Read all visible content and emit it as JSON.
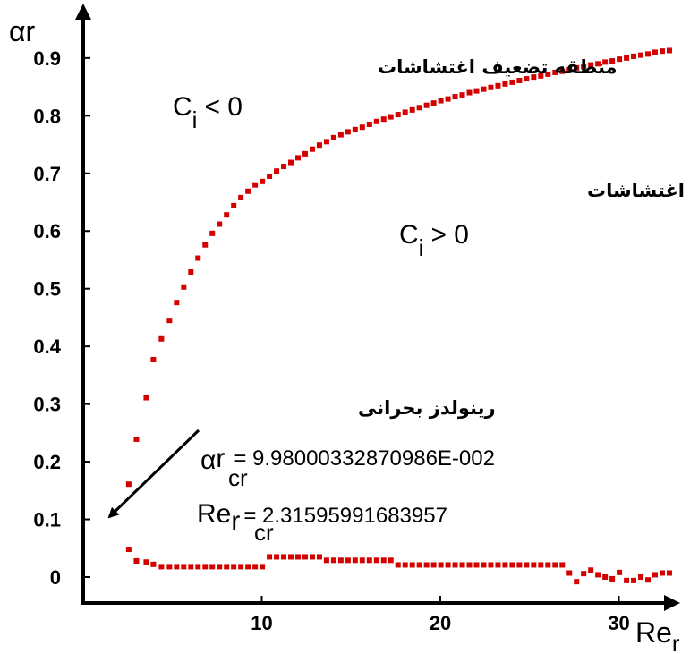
{
  "chart_data": {
    "type": "scatter",
    "ylabel": "αr",
    "xlabel_main": "Re",
    "xlabel_sub": "r",
    "xlim": [
      0,
      33
    ],
    "ylim": [
      -0.02,
      0.96
    ],
    "xticks": [
      10,
      20,
      30
    ],
    "yticks": [
      0,
      0.1,
      0.2,
      0.3,
      0.4,
      0.5,
      0.6,
      0.7,
      0.8,
      0.9
    ],
    "ytick_labels": [
      "0",
      "0.1",
      "0.2",
      "0.3",
      "0.4",
      "0.5",
      "0.6",
      "0.7",
      "0.8",
      "0.9"
    ],
    "marker_color": "#d40000",
    "upper_branch": {
      "x": [
        2.55,
        2.98,
        3.53,
        3.93,
        4.38,
        4.83,
        5.23,
        5.63,
        6.03,
        6.43,
        6.83,
        7.23,
        7.63,
        8.03,
        8.43,
        8.83,
        9.23,
        9.63,
        10.03,
        10.43,
        10.83,
        11.23,
        11.63,
        12.03,
        12.43,
        12.83,
        13.23,
        13.63,
        14.03,
        14.43,
        14.83,
        15.23,
        15.63,
        16.03,
        16.43,
        16.83,
        17.23,
        17.63,
        18.03,
        18.43,
        18.83,
        19.23,
        19.63,
        20.03,
        20.43,
        20.83,
        21.23,
        21.63,
        22.03,
        22.43,
        22.83,
        23.23,
        23.63,
        24.03,
        24.43,
        24.83,
        25.23,
        25.63,
        26.03,
        26.43,
        26.83,
        27.23,
        27.63,
        28.03,
        28.43,
        28.83,
        29.23,
        29.63,
        30.03,
        30.43,
        30.83,
        31.23,
        31.63,
        32.03,
        32.43,
        32.83
      ],
      "y": [
        0.161,
        0.239,
        0.311,
        0.377,
        0.413,
        0.445,
        0.476,
        0.503,
        0.529,
        0.553,
        0.576,
        0.596,
        0.612,
        0.628,
        0.644,
        0.658,
        0.669,
        0.68,
        0.686,
        0.695,
        0.704,
        0.712,
        0.719,
        0.727,
        0.734,
        0.742,
        0.749,
        0.755,
        0.762,
        0.767,
        0.772,
        0.776,
        0.78,
        0.785,
        0.79,
        0.794,
        0.798,
        0.802,
        0.806,
        0.81,
        0.814,
        0.818,
        0.822,
        0.826,
        0.829,
        0.833,
        0.836,
        0.84,
        0.843,
        0.846,
        0.849,
        0.852,
        0.855,
        0.858,
        0.861,
        0.864,
        0.867,
        0.869,
        0.872,
        0.875,
        0.877,
        0.88,
        0.883,
        0.885,
        0.888,
        0.89,
        0.893,
        0.895,
        0.898,
        0.9,
        0.903,
        0.905,
        0.907,
        0.91,
        0.912,
        0.913
      ]
    },
    "lower_branch": {
      "x": [
        2.55,
        2.98,
        3.53,
        3.93,
        4.38,
        4.83,
        5.23,
        5.63,
        6.03,
        6.43,
        6.83,
        7.23,
        7.63,
        8.03,
        8.43,
        8.83,
        9.23,
        9.63,
        10.03,
        10.43,
        10.83,
        11.23,
        11.63,
        12.03,
        12.43,
        12.83,
        13.23,
        13.63,
        14.03,
        14.43,
        14.83,
        15.23,
        15.63,
        16.03,
        16.43,
        16.83,
        17.23,
        17.63,
        18.03,
        18.43,
        18.83,
        19.23,
        19.63,
        20.03,
        20.43,
        20.83,
        21.23,
        21.63,
        22.03,
        22.43,
        22.83,
        23.23,
        23.63,
        24.03,
        24.43,
        24.83,
        25.23,
        25.63,
        26.03,
        26.43,
        26.83,
        27.23,
        27.63,
        28.03,
        28.43,
        28.83,
        29.23,
        29.63,
        30.03,
        30.43,
        30.83,
        31.23,
        31.63,
        32.03,
        32.43,
        32.83
      ],
      "y": [
        0.048,
        0.028,
        0.026,
        0.022,
        0.018,
        0.018,
        0.018,
        0.018,
        0.018,
        0.018,
        0.018,
        0.018,
        0.018,
        0.018,
        0.018,
        0.018,
        0.018,
        0.018,
        0.018,
        0.035,
        0.035,
        0.035,
        0.035,
        0.035,
        0.035,
        0.035,
        0.035,
        0.029,
        0.029,
        0.029,
        0.029,
        0.029,
        0.029,
        0.029,
        0.029,
        0.029,
        0.029,
        0.021,
        0.021,
        0.021,
        0.021,
        0.021,
        0.021,
        0.021,
        0.021,
        0.021,
        0.021,
        0.021,
        0.021,
        0.021,
        0.021,
        0.021,
        0.021,
        0.021,
        0.021,
        0.021,
        0.021,
        0.021,
        0.021,
        0.021,
        0.021,
        0.007,
        -0.008,
        0.006,
        0.012,
        0.004,
        0.0,
        -0.003,
        0.008,
        -0.006,
        -0.006,
        0.0,
        -0.005,
        0.004,
        0.007,
        0.007
      ]
    },
    "critical_point": {
      "x": 2.316,
      "y": 0.0998
    },
    "annotations": {
      "damping_region": "منطقه تضعیف اغتشاشات",
      "damping_ci_main": "C",
      "damping_ci_sub": "i",
      "damping_ci_rest": "< 0",
      "amplification_region": "منطقه تقویت اغتشاشات",
      "amplification_ci_main": "C",
      "amplification_ci_sub": "i",
      "amplification_ci_rest": "> 0",
      "critical_label": "رینولدز بحرانی",
      "alpha_cr_symbol": "α",
      "alpha_cr_sub1": "r",
      "alpha_cr_sub2": "cr",
      "alpha_cr_value": "= 9.98000332870986E-002",
      "re_cr_main": "Re",
      "re_cr_sub1": "r",
      "re_cr_sub2": "cr",
      "re_cr_value": "= 2.31595991683957"
    }
  }
}
